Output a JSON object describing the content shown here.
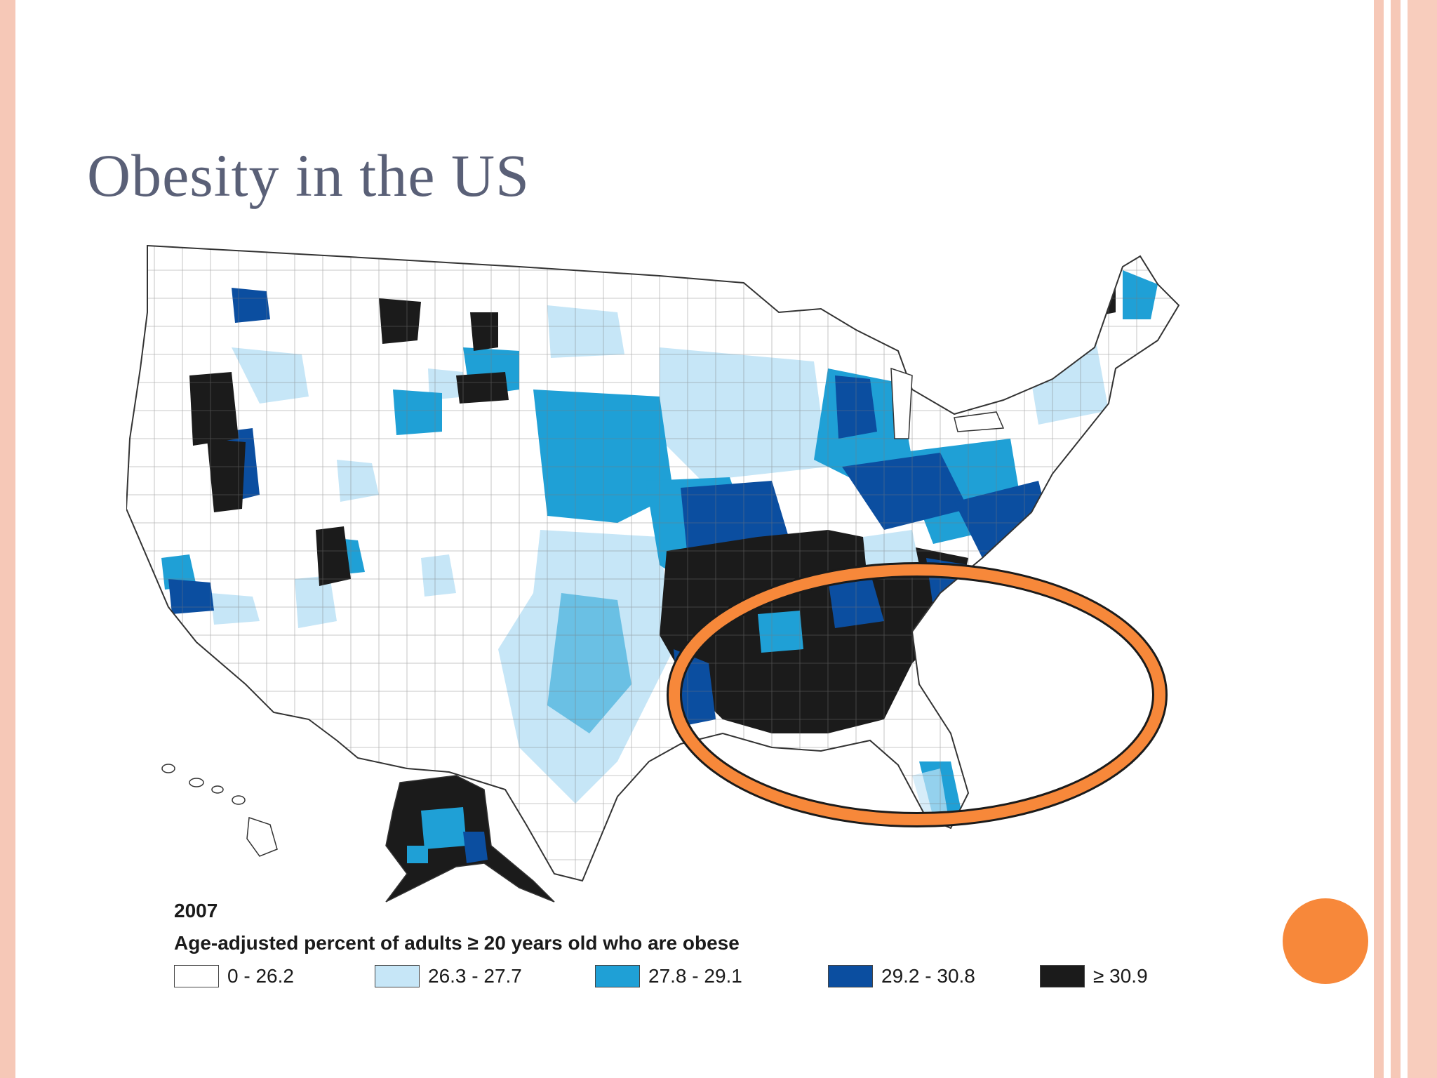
{
  "slide": {
    "title": "Obesity in the US"
  },
  "map": {
    "year": "2007",
    "legend_title": "Age-adjusted percent of adults ≥ 20 years old who are obese",
    "legend": [
      {
        "label": "0 - 26.2",
        "color": "#ffffff"
      },
      {
        "label": "26.3 - 27.7",
        "color": "#c6e6f7"
      },
      {
        "label": "27.8 - 29.1",
        "color": "#1fa0d6"
      },
      {
        "label": "29.2 - 30.8",
        "color": "#0b4ea0"
      },
      {
        "label": "≥ 30.9",
        "color": "#1b1b1b"
      }
    ],
    "highlight_color": "#f7883a",
    "map_icon": "us-county-choropleth"
  }
}
